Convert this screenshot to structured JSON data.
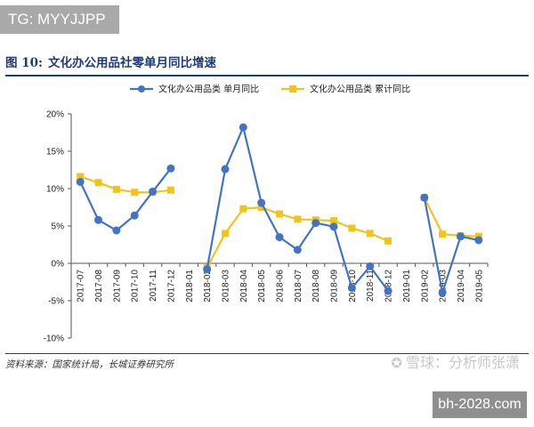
{
  "badges": {
    "tg": "TG: MYYJJPP",
    "site": "bh-2028.com"
  },
  "figure": {
    "number": "图 10:",
    "title": "文化办公用品社零单月同比增速",
    "source": "资料来源：国家统计局，长城证券研究所",
    "watermark": "雪球：分析师张潇"
  },
  "colors": {
    "monthly": "#4472c4",
    "cumulative": "#f0c419",
    "title": "#1f3b73"
  },
  "chart_data": {
    "type": "line",
    "categories": [
      "2017-07",
      "2017-08",
      "2017-09",
      "2017-10",
      "2017-11",
      "2017-12",
      "2018-01",
      "2018-02",
      "2018-03",
      "2018-04",
      "2018-05",
      "2018-06",
      "2018-07",
      "2018-08",
      "2018-09",
      "2018-10",
      "2018-11",
      "2018-12",
      "2019-01",
      "2019-02",
      "2019-03",
      "2019-04",
      "2019-05"
    ],
    "series": [
      {
        "name": "文化办公用品类 单月同比",
        "color": "#4472c4",
        "marker": "circle",
        "values": [
          10.9,
          5.8,
          4.4,
          6.4,
          9.6,
          12.7,
          null,
          -0.8,
          12.6,
          18.2,
          8.1,
          3.5,
          1.8,
          5.4,
          4.9,
          -3.3,
          -0.4,
          -3.7,
          null,
          8.8,
          -3.9,
          3.6,
          3.1
        ]
      },
      {
        "name": "文化办公用品类 累计同比",
        "color": "#f0c419",
        "marker": "square",
        "values": [
          11.6,
          10.8,
          9.9,
          9.5,
          9.5,
          9.8,
          null,
          -0.6,
          4.0,
          7.3,
          7.5,
          6.6,
          5.9,
          5.8,
          5.7,
          4.7,
          4.0,
          3.0,
          null,
          8.8,
          3.9,
          3.7,
          3.6
        ]
      }
    ],
    "y_ticks": [
      "20%",
      "15%",
      "10%",
      "5%",
      "0%",
      "-5%",
      "-10%"
    ],
    "ylim": [
      -10,
      20
    ],
    "y_tick_step": 5,
    "legend": "top",
    "grid": false
  }
}
